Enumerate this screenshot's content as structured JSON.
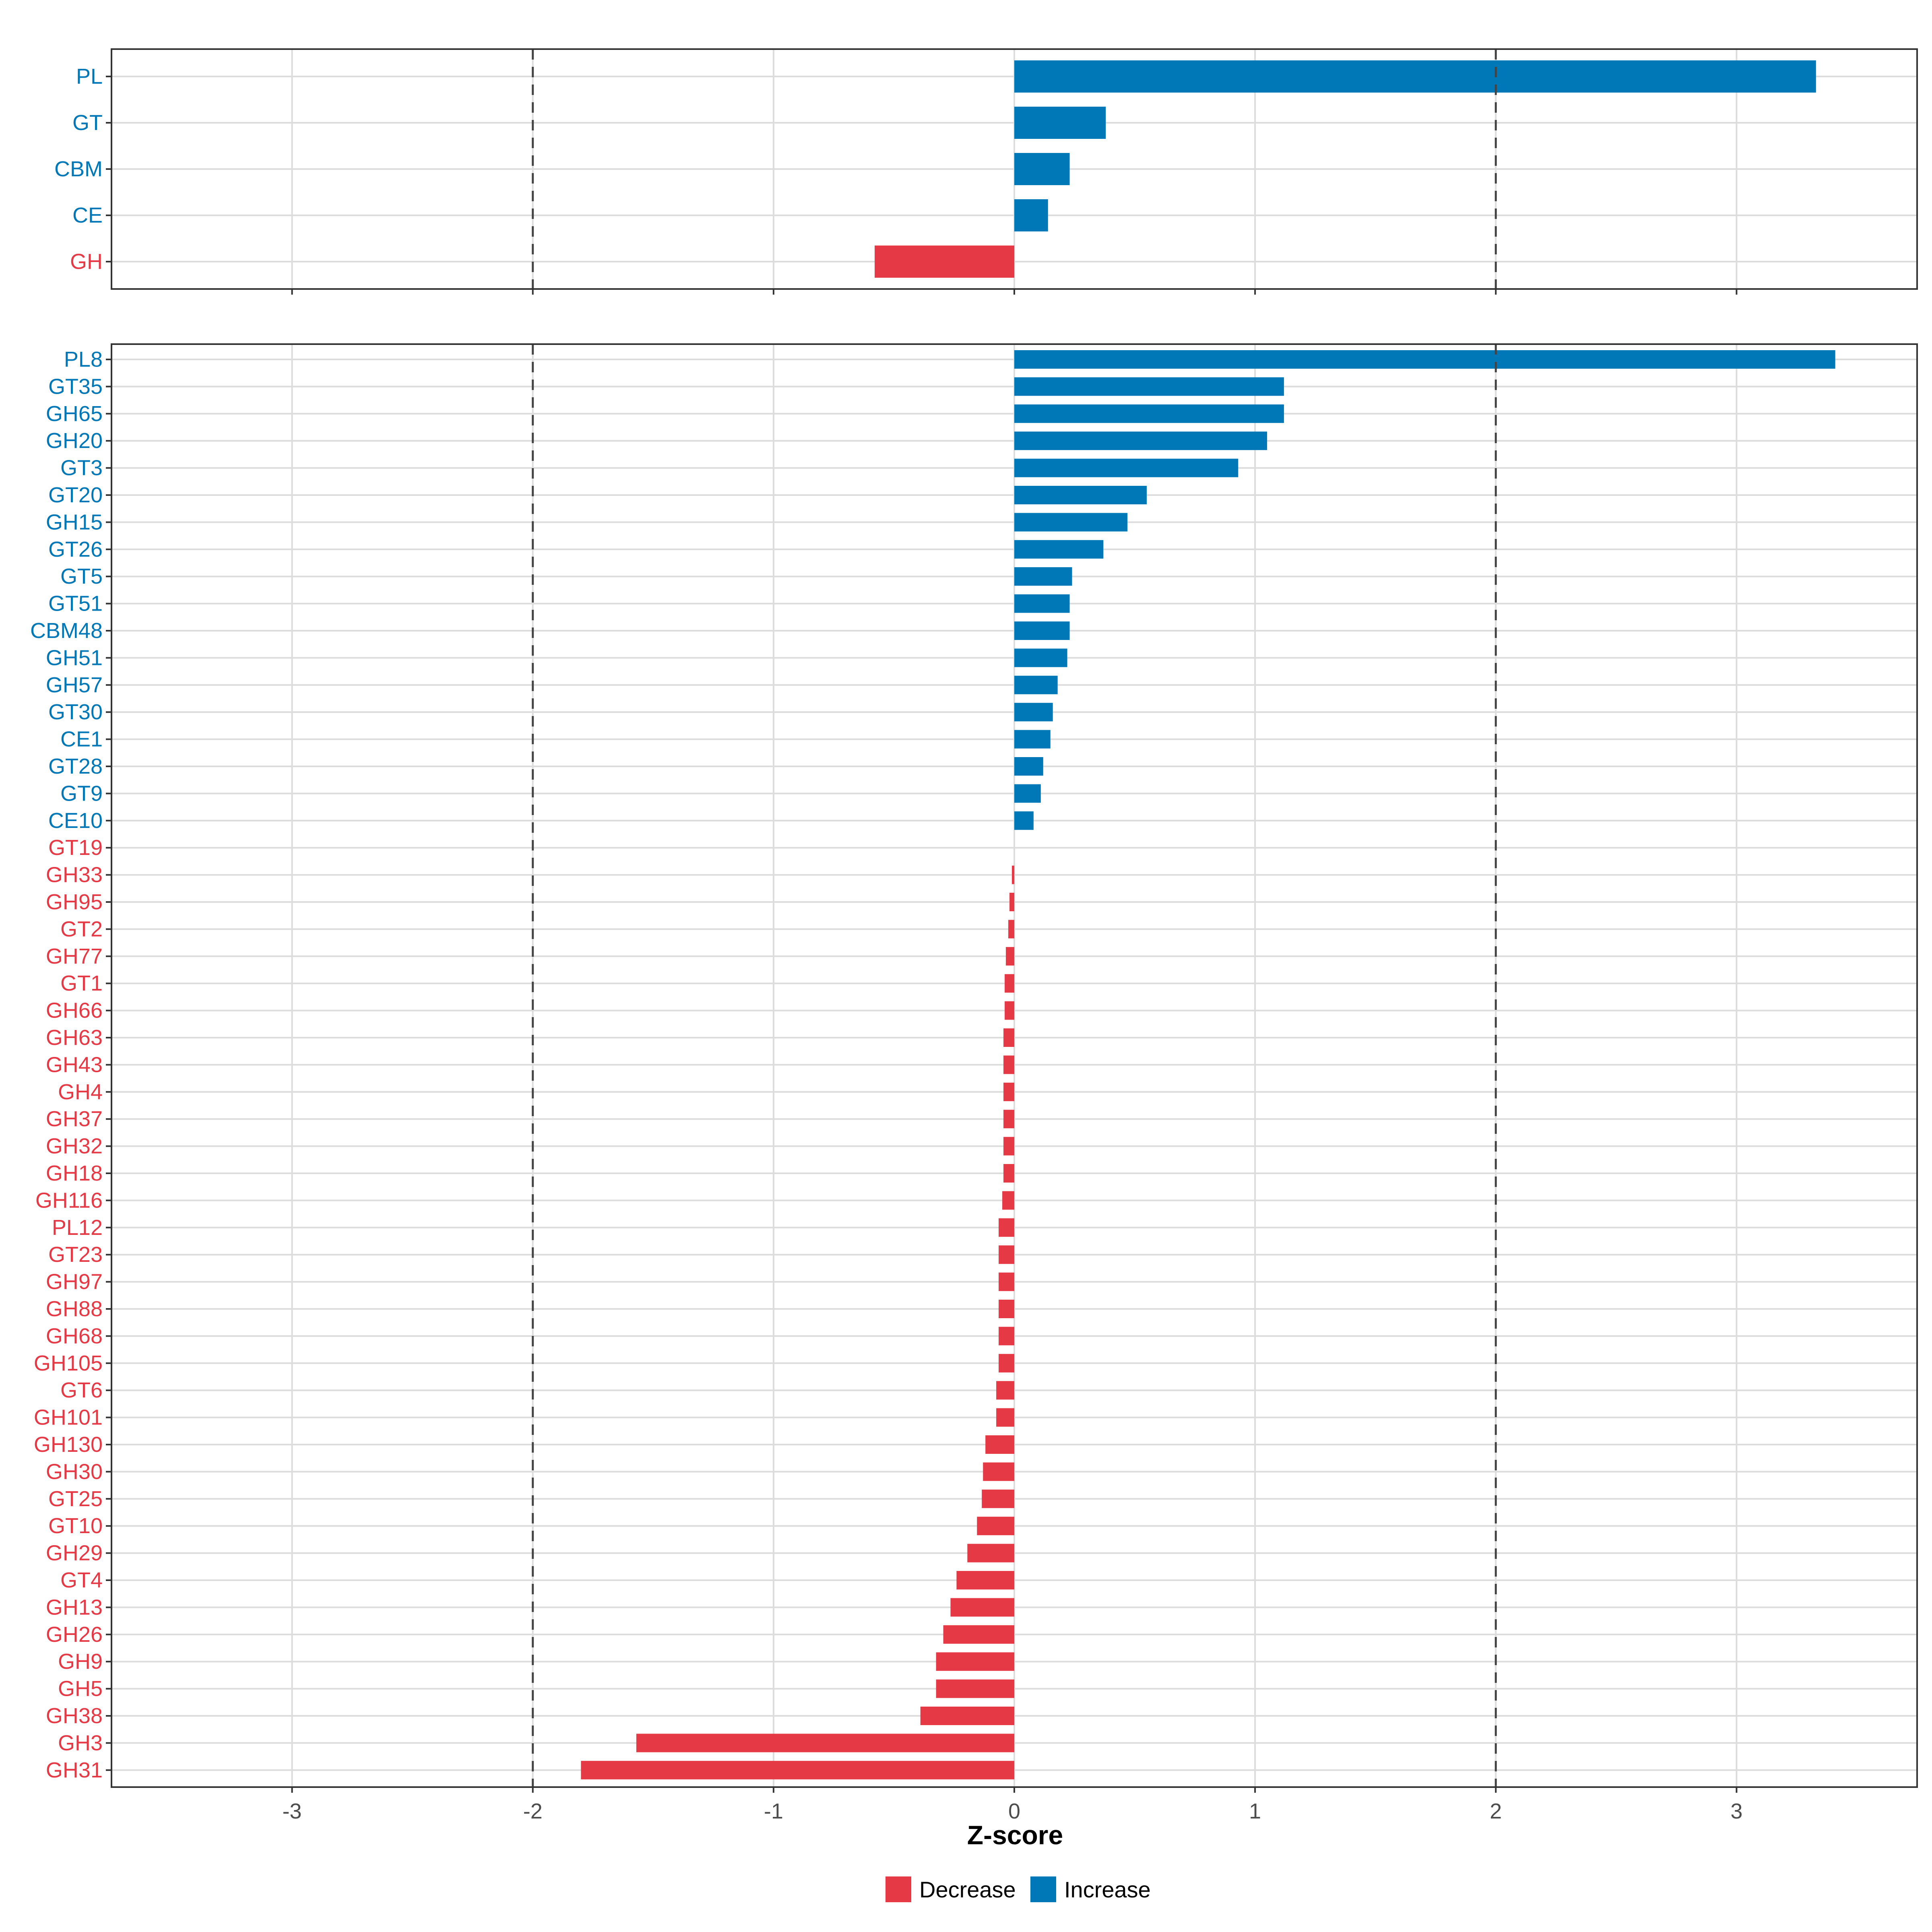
{
  "chart_data": [
    {
      "type": "bar",
      "orientation": "horizontal",
      "panel": "top",
      "categories": [
        "PL",
        "GT",
        "CBM",
        "CE",
        "GH"
      ],
      "values": [
        3.33,
        0.38,
        0.23,
        0.14,
        -0.58
      ],
      "directions": [
        "Increase",
        "Increase",
        "Increase",
        "Increase",
        "Decrease"
      ],
      "xlim": [
        -3.75,
        3.75
      ],
      "reference_lines": [
        -2,
        2
      ]
    },
    {
      "type": "bar",
      "orientation": "horizontal",
      "panel": "bottom",
      "categories": [
        "PL8",
        "GT35",
        "GH65",
        "GH20",
        "GT3",
        "GT20",
        "GH15",
        "GT26",
        "GT5",
        "GT51",
        "CBM48",
        "GH51",
        "GH57",
        "GT30",
        "CE1",
        "GT28",
        "GT9",
        "CE10",
        "GT19",
        "GH33",
        "GH95",
        "GT2",
        "GH77",
        "GT1",
        "GH66",
        "GH63",
        "GH43",
        "GH4",
        "GH37",
        "GH32",
        "GH18",
        "GH116",
        "PL12",
        "GT23",
        "GH97",
        "GH88",
        "GH68",
        "GH105",
        "GT6",
        "GH101",
        "GH130",
        "GH30",
        "GT25",
        "GT10",
        "GH29",
        "GT4",
        "GH13",
        "GH26",
        "GH9",
        "GH5",
        "GH38",
        "GH3",
        "GH31"
      ],
      "values": [
        3.41,
        1.12,
        1.12,
        1.05,
        0.93,
        0.55,
        0.47,
        0.37,
        0.24,
        0.23,
        0.23,
        0.22,
        0.18,
        0.16,
        0.15,
        0.12,
        0.11,
        0.08,
        0.0,
        -0.01,
        -0.02,
        -0.025,
        -0.035,
        -0.04,
        -0.04,
        -0.045,
        -0.045,
        -0.045,
        -0.045,
        -0.045,
        -0.045,
        -0.05,
        -0.065,
        -0.065,
        -0.065,
        -0.065,
        -0.065,
        -0.065,
        -0.075,
        -0.075,
        -0.12,
        -0.13,
        -0.135,
        -0.155,
        -0.195,
        -0.24,
        -0.265,
        -0.295,
        -0.325,
        -0.325,
        -0.39,
        -1.57,
        -1.8
      ],
      "directions": [
        "Increase",
        "Increase",
        "Increase",
        "Increase",
        "Increase",
        "Increase",
        "Increase",
        "Increase",
        "Increase",
        "Increase",
        "Increase",
        "Increase",
        "Increase",
        "Increase",
        "Increase",
        "Increase",
        "Increase",
        "Increase",
        "Decrease",
        "Decrease",
        "Decrease",
        "Decrease",
        "Decrease",
        "Decrease",
        "Decrease",
        "Decrease",
        "Decrease",
        "Decrease",
        "Decrease",
        "Decrease",
        "Decrease",
        "Decrease",
        "Decrease",
        "Decrease",
        "Decrease",
        "Decrease",
        "Decrease",
        "Decrease",
        "Decrease",
        "Decrease",
        "Decrease",
        "Decrease",
        "Decrease",
        "Decrease",
        "Decrease",
        "Decrease",
        "Decrease",
        "Decrease",
        "Decrease",
        "Decrease",
        "Decrease",
        "Decrease",
        "Decrease"
      ],
      "xlim": [
        -3.75,
        3.75
      ],
      "xticks": [
        -3,
        -2,
        -1,
        0,
        1,
        2,
        3
      ],
      "xticklabels": [
        "-3",
        "-2",
        "-1",
        "0",
        "1",
        "2",
        "3"
      ],
      "xlabel": "Z-score",
      "reference_lines": [
        -2,
        2
      ]
    }
  ],
  "legend": {
    "items": [
      {
        "label": "Decrease",
        "color": "#e63946"
      },
      {
        "label": "Increase",
        "color": "#0077b6"
      }
    ]
  },
  "colors": {
    "Increase": "#0077b6",
    "Decrease": "#e63946"
  }
}
